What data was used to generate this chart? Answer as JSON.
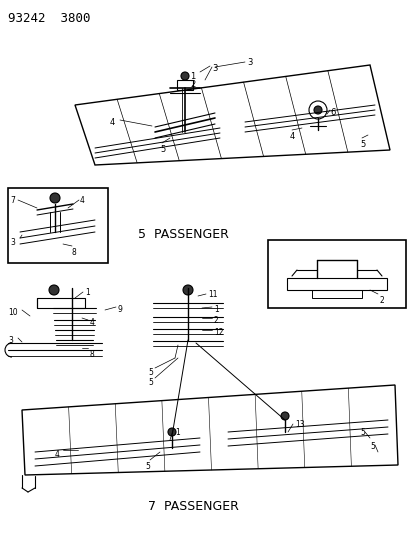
{
  "title": "93242  3800",
  "label_5pass": "5  PASSENGER",
  "label_7pass": "7  PASSENGER",
  "bg_color": "#ffffff",
  "lc": "#000000",
  "fig_w": 4.14,
  "fig_h": 5.33,
  "dpi": 100
}
